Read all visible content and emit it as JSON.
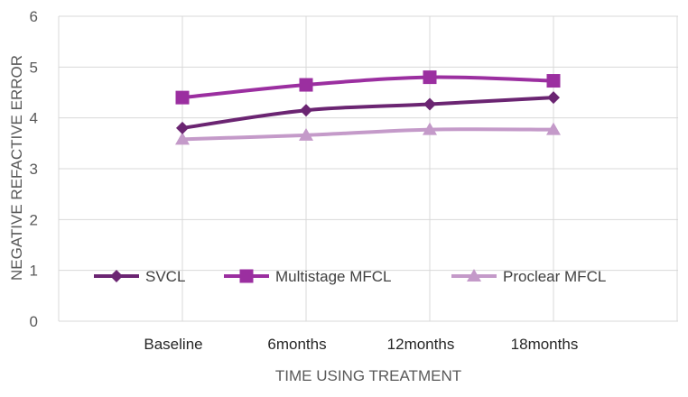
{
  "chart_data": {
    "type": "line",
    "categories": [
      "Baseline",
      "6months",
      "12months",
      "18months"
    ],
    "series": [
      {
        "name": "SVCL",
        "values": [
          3.8,
          4.15,
          4.27,
          4.4
        ],
        "color": "#6b2572",
        "marker": "diamond"
      },
      {
        "name": "Multistage MFCL",
        "values": [
          4.4,
          4.65,
          4.8,
          4.73
        ],
        "color": "#9b2fa0",
        "marker": "square"
      },
      {
        "name": "Proclear MFCL",
        "values": [
          3.58,
          3.66,
          3.77,
          3.77
        ],
        "color": "#c49ac9",
        "marker": "triangle"
      }
    ],
    "xlabel": "TIME USING TREATMENT",
    "ylabel": "NEGATIVE REFACTIVE ERROR",
    "ylim": [
      0,
      6
    ],
    "yticks": [
      "0",
      "1",
      "2",
      "3",
      "4",
      "5",
      "6"
    ],
    "grid": true,
    "legend_position": "inside-bottom"
  }
}
